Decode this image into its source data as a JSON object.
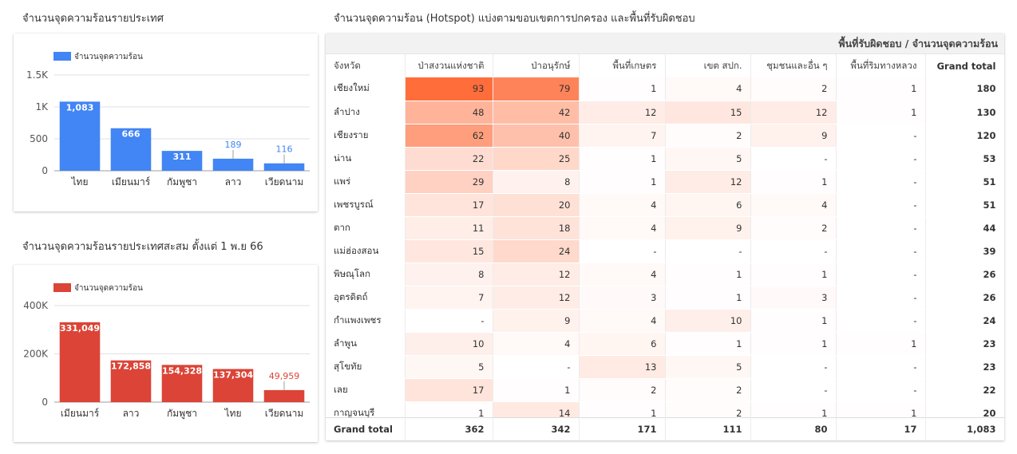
{
  "chart_data": [
    {
      "type": "bar",
      "title": "จำนวนจุดความร้อนรายประเทศ",
      "legend": "จำนวนจุดความร้อน",
      "legend_position": "top-left",
      "color": "#4285f4",
      "categories": [
        "ไทย",
        "เมียนมาร์",
        "กัมพูชา",
        "ลาว",
        "เวียดนาม"
      ],
      "values": [
        1083,
        666,
        311,
        189,
        116
      ],
      "data_labels": [
        "1,083",
        "666",
        "311",
        "189",
        "116"
      ],
      "y_ticks": [
        "0",
        "500",
        "1K",
        "1.5K"
      ],
      "y_tick_values": [
        0,
        500,
        1000,
        1500
      ],
      "ylim": [
        0,
        1500
      ],
      "grid": true
    },
    {
      "type": "bar",
      "title": "จำนวนจุดความร้อนรายประเทศสะสม ตั้งแต่ 1 พ.ย 66",
      "legend": "จำนวนจุดความร้อน",
      "legend_position": "top-left",
      "color": "#db4437",
      "categories": [
        "เมียนมาร์",
        "ลาว",
        "กัมพูชา",
        "ไทย",
        "เวียดนาม"
      ],
      "values": [
        331049,
        172858,
        154328,
        137304,
        49959
      ],
      "data_labels": [
        "331,049",
        "172,858",
        "154,328",
        "137,304",
        "49,959"
      ],
      "y_ticks": [
        "0",
        "200K",
        "400K"
      ],
      "y_tick_values": [
        0,
        200000,
        400000
      ],
      "ylim": [
        0,
        400000
      ],
      "grid": true
    },
    {
      "type": "table",
      "title": "จำนวนจุดความร้อน (Hotspot) แบ่งตามขอบเขตการปกครอง และพื้นที่รับผิดชอบ",
      "banner": "พื้นที่รับผิดชอบ / จำนวนจุดความร้อน",
      "heat_color": "#ff6d3b",
      "heat_max": 93,
      "columns": [
        "จังหวัด",
        "ป่าสงวนแห่งชาติ",
        "ป่าอนุรักษ์",
        "พื้นที่เกษตร",
        "เขต สปก.",
        "ชุมชนและอื่น ๆ",
        "พื้นที่ริมทางหลวง",
        "Grand total"
      ],
      "rows": [
        [
          "เชียงใหม่",
          "93",
          "79",
          "1",
          "4",
          "2",
          "1",
          "180"
        ],
        [
          "ลำปาง",
          "48",
          "42",
          "12",
          "15",
          "12",
          "1",
          "130"
        ],
        [
          "เชียงราย",
          "62",
          "40",
          "7",
          "2",
          "9",
          "-",
          "120"
        ],
        [
          "น่าน",
          "22",
          "25",
          "1",
          "5",
          "-",
          "-",
          "53"
        ],
        [
          "แพร่",
          "29",
          "8",
          "1",
          "12",
          "1",
          "-",
          "51"
        ],
        [
          "เพชรบูรณ์",
          "17",
          "20",
          "4",
          "6",
          "4",
          "-",
          "51"
        ],
        [
          "ตาก",
          "11",
          "18",
          "4",
          "9",
          "2",
          "-",
          "44"
        ],
        [
          "แม่ฮ่องสอน",
          "15",
          "24",
          "-",
          "-",
          "-",
          "-",
          "39"
        ],
        [
          "พิษณุโลก",
          "8",
          "12",
          "4",
          "1",
          "1",
          "-",
          "26"
        ],
        [
          "อุตรดิตถ์",
          "7",
          "12",
          "3",
          "1",
          "3",
          "-",
          "26"
        ],
        [
          "กำแพงเพชร",
          "-",
          "9",
          "4",
          "10",
          "1",
          "-",
          "24"
        ],
        [
          "ลำพูน",
          "10",
          "4",
          "6",
          "1",
          "1",
          "1",
          "23"
        ],
        [
          "สุโขทัย",
          "5",
          "-",
          "13",
          "5",
          "-",
          "-",
          "23"
        ],
        [
          "เลย",
          "17",
          "1",
          "2",
          "2",
          "-",
          "-",
          "22"
        ],
        [
          "กาญจนบุรี",
          "1",
          "14",
          "1",
          "2",
          "1",
          "1",
          "20"
        ]
      ],
      "footer": [
        "Grand total",
        "362",
        "342",
        "171",
        "111",
        "80",
        "17",
        "1,083"
      ]
    }
  ]
}
